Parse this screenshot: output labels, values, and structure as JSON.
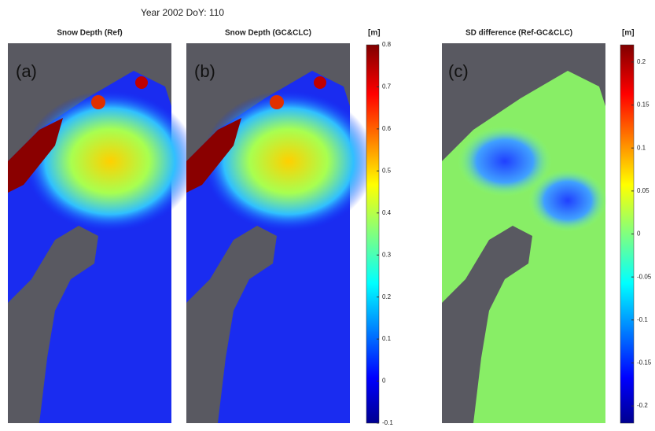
{
  "title": "Year 2002  DoY: 110",
  "panels": [
    {
      "title": "Snow Depth (Ref)",
      "label": "(a)"
    },
    {
      "title": "Snow Depth (GC&CLC)",
      "label": "(b)"
    },
    {
      "title": "SD difference (Ref-GC&CLC)",
      "label": "(c)"
    }
  ],
  "colorbars": [
    {
      "unit": "[m]",
      "lim": [
        -0.1,
        0.8
      ],
      "ticks": [
        0.8,
        0.7,
        0.6,
        0.5,
        0.4,
        0.3,
        0.2,
        0.1,
        0,
        -0.1
      ]
    },
    {
      "unit": "[m]",
      "lim": [
        -0.22,
        0.22
      ],
      "ticks": [
        0.2,
        0.15,
        0.1,
        0.05,
        0,
        -0.05,
        -0.1,
        -0.15,
        -0.2
      ]
    }
  ]
}
